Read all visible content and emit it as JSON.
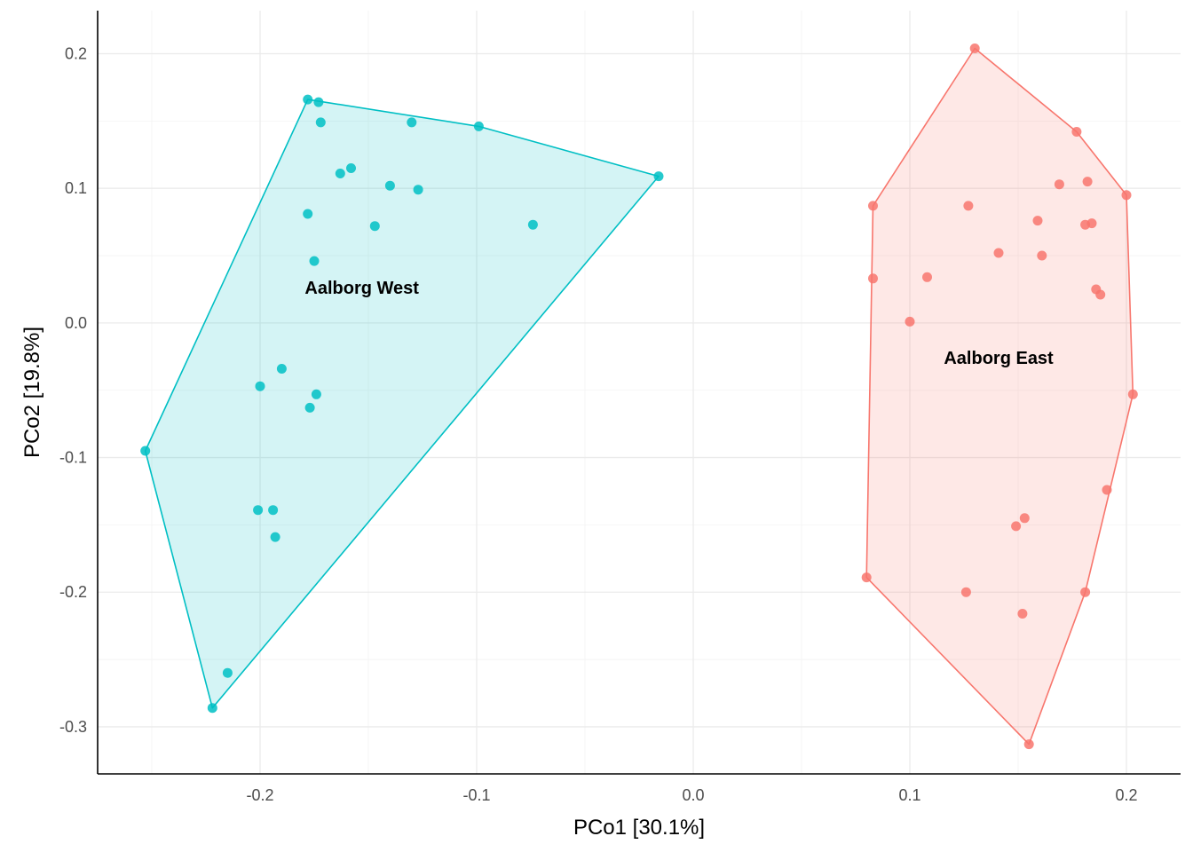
{
  "chart_data": {
    "type": "scatter",
    "xlabel": "PCo1 [30.1%]",
    "ylabel": "PCo2 [19.8%]",
    "xlim": [
      -0.275,
      0.225
    ],
    "ylim": [
      -0.335,
      0.232
    ],
    "x_ticks": [
      -0.2,
      -0.1,
      0.0,
      0.1,
      0.2
    ],
    "x_tick_labels": [
      "-0.2",
      "-0.1",
      "0.0",
      "0.1",
      "0.2"
    ],
    "y_ticks": [
      -0.3,
      -0.2,
      -0.1,
      0.0,
      0.1,
      0.2
    ],
    "y_tick_labels": [
      "-0.3",
      "-0.2",
      "-0.1",
      "0.0",
      "0.1",
      "0.2"
    ],
    "grid": true,
    "hulls": true,
    "series": [
      {
        "label": "Aalborg West",
        "color": "#00BFC4",
        "label_pos": [
          -0.153,
          0.025
        ],
        "points": [
          [
            -0.178,
            0.166
          ],
          [
            -0.173,
            0.164
          ],
          [
            -0.172,
            0.149
          ],
          [
            -0.13,
            0.149
          ],
          [
            -0.099,
            0.146
          ],
          [
            -0.016,
            0.109
          ],
          [
            -0.163,
            0.111
          ],
          [
            -0.158,
            0.115
          ],
          [
            -0.14,
            0.102
          ],
          [
            -0.127,
            0.099
          ],
          [
            -0.178,
            0.081
          ],
          [
            -0.147,
            0.072
          ],
          [
            -0.074,
            0.073
          ],
          [
            -0.175,
            0.046
          ],
          [
            -0.19,
            -0.034
          ],
          [
            -0.2,
            -0.047
          ],
          [
            -0.174,
            -0.053
          ],
          [
            -0.177,
            -0.063
          ],
          [
            -0.253,
            -0.095
          ],
          [
            -0.201,
            -0.139
          ],
          [
            -0.194,
            -0.139
          ],
          [
            -0.193,
            -0.159
          ],
          [
            -0.215,
            -0.26
          ],
          [
            -0.222,
            -0.286
          ]
        ]
      },
      {
        "label": "Aalborg East",
        "color": "#F8766D",
        "label_pos": [
          0.141,
          -0.027
        ],
        "points": [
          [
            0.13,
            0.204
          ],
          [
            0.177,
            0.142
          ],
          [
            0.169,
            0.103
          ],
          [
            0.182,
            0.105
          ],
          [
            0.2,
            0.095
          ],
          [
            0.083,
            0.087
          ],
          [
            0.127,
            0.087
          ],
          [
            0.159,
            0.076
          ],
          [
            0.181,
            0.073
          ],
          [
            0.184,
            0.074
          ],
          [
            0.141,
            0.052
          ],
          [
            0.161,
            0.05
          ],
          [
            0.083,
            0.033
          ],
          [
            0.108,
            0.034
          ],
          [
            0.186,
            0.025
          ],
          [
            0.188,
            0.021
          ],
          [
            0.1,
            0.001
          ],
          [
            0.203,
            -0.053
          ],
          [
            0.191,
            -0.124
          ],
          [
            0.153,
            -0.145
          ],
          [
            0.149,
            -0.151
          ],
          [
            0.08,
            -0.189
          ],
          [
            0.126,
            -0.2
          ],
          [
            0.181,
            -0.2
          ],
          [
            0.152,
            -0.216
          ],
          [
            0.155,
            -0.313
          ]
        ]
      }
    ]
  }
}
